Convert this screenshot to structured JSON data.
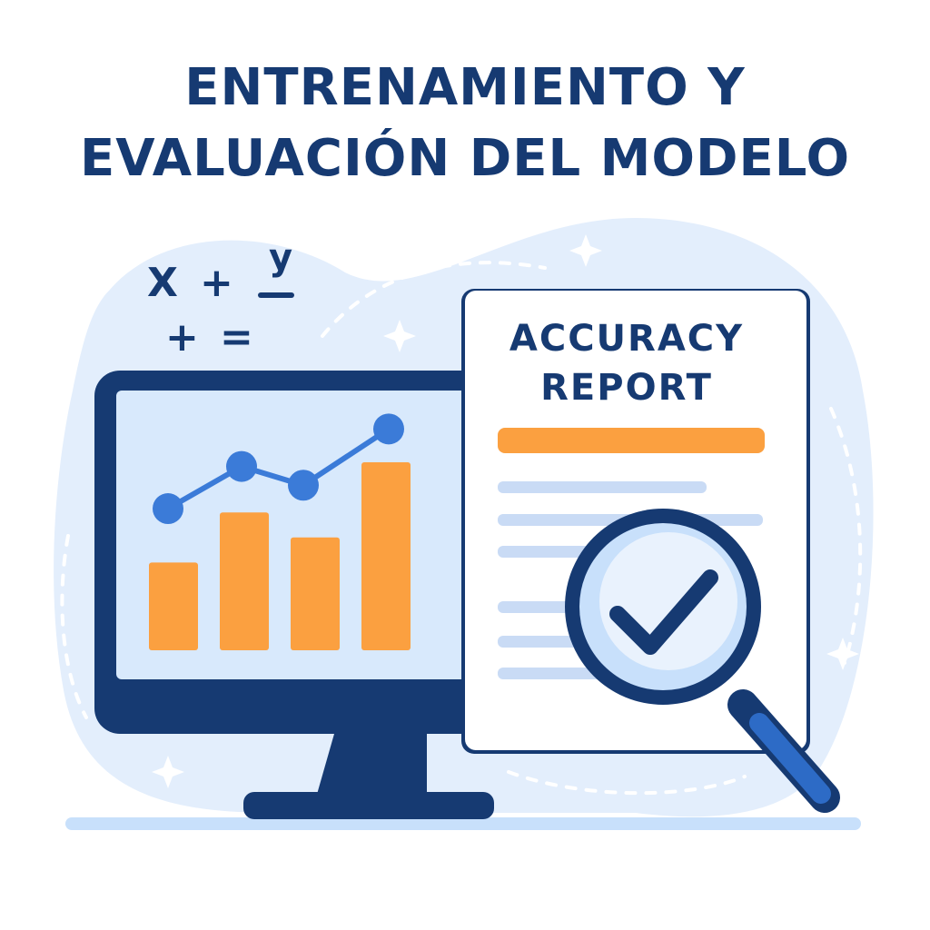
{
  "title": {
    "line1": "ENTRENAMIENTO Y",
    "line2": "EVALUACIÓN DEL MODELO"
  },
  "report": {
    "line1": "ACCURACY",
    "line2": "REPORT"
  },
  "math_symbols": {
    "row1": [
      "X",
      "+",
      "y"
    ],
    "row2": [
      "+",
      "="
    ]
  },
  "chart_data": {
    "type": "bar",
    "values": [
      0.42,
      0.66,
      0.54,
      0.9
    ],
    "line_values": [
      0.62,
      0.8,
      0.72,
      0.96
    ]
  },
  "colors": {
    "navy": "#163a72",
    "blue": "#3b7bd8",
    "orange": "#fba040",
    "light_blue": "#dceafb",
    "screen": "#d8e9fc"
  },
  "icons": [
    "monitor-icon",
    "bar-chart-icon",
    "document-icon",
    "magnifier-icon",
    "checkmark-icon",
    "sparkle-icon"
  ]
}
